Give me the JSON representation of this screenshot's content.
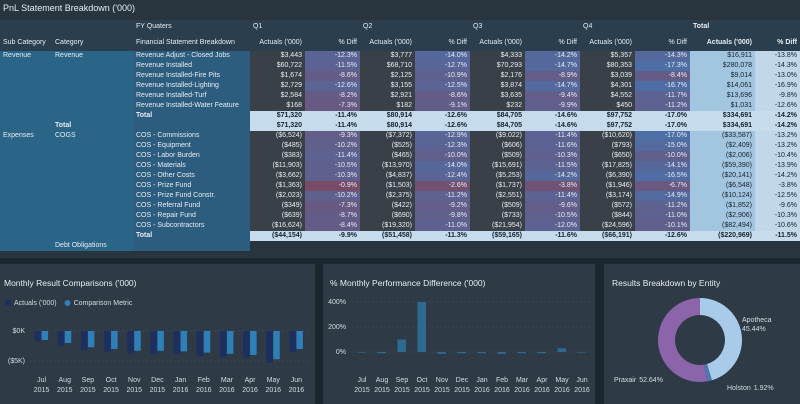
{
  "table": {
    "title": "PnL Statement Breakdown ('000)",
    "group_label": "FY Quaters",
    "quarters": [
      "Q1",
      "Q2",
      "Q3",
      "Q4",
      "Total"
    ],
    "columns": [
      "Sub Category",
      "Category",
      "Financial Statement Breakdown"
    ],
    "measures": [
      "Actuals ('000)",
      "% Diff"
    ],
    "rows": [
      {
        "sub_category": "Revenue",
        "category": "Revenue",
        "item": "Revenue Adjust - Closed Jobs",
        "values": [
          "$3,443",
          "-12.3%",
          "$3,777",
          "-14.0%",
          "$4,333",
          "-14.2%",
          "$5,357",
          "-14.3%",
          "$16,911",
          "-13.8%"
        ]
      },
      {
        "item": "Revenue Installed",
        "values": [
          "$60,722",
          "-11.5%",
          "$68,710",
          "-12.7%",
          "$70,293",
          "-14.7%",
          "$80,353",
          "-17.3%",
          "$280,078",
          "-14.3%"
        ]
      },
      {
        "item": "Revenue Installed-Fire Pits",
        "values": [
          "$1,674",
          "-8.6%",
          "$2,125",
          "-10.9%",
          "$2,176",
          "-8.9%",
          "$3,039",
          "-8.4%",
          "$9,014",
          "-13.0%"
        ]
      },
      {
        "item": "Revenue Installed-Lighting",
        "values": [
          "$2,729",
          "-12.6%",
          "$3,155",
          "-12.5%",
          "$3,874",
          "-14.7%",
          "$4,301",
          "-16.7%",
          "$14,061",
          "-16.9%"
        ]
      },
      {
        "item": "Revenue Installed-Turf",
        "values": [
          "$2,584",
          "-8.2%",
          "$2,921",
          "-8.6%",
          "$3,635",
          "-9.4%",
          "$4,552",
          "-11.7%",
          "$13,696",
          "-9.8%"
        ]
      },
      {
        "item": "Revenue Installed-Water Feature",
        "values": [
          "$168",
          "-7.3%",
          "$182",
          "-9.1%",
          "$232",
          "-9.9%",
          "$450",
          "-11.2%",
          "$1,031",
          "-12.6%"
        ]
      },
      {
        "item": "Total",
        "style": "total",
        "values": [
          "$71,320",
          "-11.4%",
          "$80,914",
          "-12.6%",
          "$84,705",
          "-14.6%",
          "$97,752",
          "-17.0%",
          "$334,691",
          "-14.2%"
        ]
      },
      {
        "category": "Total",
        "style": "total",
        "values": [
          "$71,320",
          "-11.4%",
          "$80,914",
          "-12.6%",
          "$84,705",
          "-14.6%",
          "$97,752",
          "-17.0%",
          "$334,691",
          "-14.2%"
        ]
      },
      {
        "sub_category": "Expenses",
        "category": "COGS",
        "item": "COS - Commissions",
        "values": [
          "($6,524)",
          "-9.3%",
          "($7,372)",
          "-12.9%",
          "($9,022)",
          "-11.4%",
          "($10,620)",
          "-17.0%",
          "($33,587)",
          "-13.2%"
        ]
      },
      {
        "item": "COS - Equipment",
        "values": [
          "($485)",
          "-10.2%",
          "($525)",
          "-12.3%",
          "($606)",
          "-11.6%",
          "($793)",
          "-15.0%",
          "($2,409)",
          "-13.2%"
        ]
      },
      {
        "item": "COS - Labor Burden",
        "values": [
          "($383)",
          "-11.4%",
          "($465)",
          "-10.0%",
          "($509)",
          "-10.3%",
          "($650)",
          "-10.0%",
          "($2,006)",
          "-10.4%"
        ]
      },
      {
        "item": "COS - Materials",
        "values": [
          "($11,903)",
          "-10.5%",
          "($13,970)",
          "-14.0%",
          "($15,691)",
          "-11.5%",
          "($17,825)",
          "-14.1%",
          "($59,390)",
          "-13.9%"
        ]
      },
      {
        "item": "COS - Other Costs",
        "values": [
          "($3,662)",
          "-10.3%",
          "($4,837)",
          "-12.4%",
          "($5,253)",
          "-14.2%",
          "($6,390)",
          "-16.5%",
          "($20,141)",
          "-14.2%"
        ]
      },
      {
        "item": "COS - Prize Fund",
        "values": [
          "($1,363)",
          "-0.9%",
          "($1,503)",
          "-2.6%",
          "($1,737)",
          "-3.8%",
          "($1,946)",
          "-6.7%",
          "($6,548)",
          "-3.8%"
        ]
      },
      {
        "item": "COS - Prize Fund Constr.",
        "values": [
          "($2,023)",
          "-10.2%",
          "($2,375)",
          "-11.2%",
          "($2,551)",
          "-11.4%",
          "($3,174)",
          "-14.9%",
          "($10,124)",
          "-12.5%"
        ]
      },
      {
        "item": "COS - Referral Fund",
        "values": [
          "($349)",
          "-7.3%",
          "($422)",
          "-9.2%",
          "($509)",
          "-9.6%",
          "($572)",
          "-11.2%",
          "($1,852)",
          "-9.6%"
        ]
      },
      {
        "item": "COS - Repair Fund",
        "values": [
          "($639)",
          "-8.7%",
          "($690)",
          "-9.8%",
          "($733)",
          "-10.5%",
          "($844)",
          "-11.0%",
          "($2,906)",
          "-10.3%"
        ]
      },
      {
        "item": "COS - Subcontractors",
        "values": [
          "($16,624)",
          "-8.4%",
          "($19,320)",
          "-11.0%",
          "($21,954)",
          "-12.0%",
          "($24,596)",
          "-10.1%",
          "($82,494)",
          "-10.6%"
        ]
      },
      {
        "item": "Total",
        "style": "total",
        "values": [
          "($44,154)",
          "-9.9%",
          "($51,458)",
          "-11.3%",
          "($59,165)",
          "-11.6%",
          "($66,191)",
          "-12.6%",
          "($220,969)",
          "-11.5%"
        ]
      },
      {
        "category": "Debt Obligations"
      }
    ]
  },
  "chart_data": [
    {
      "type": "bar",
      "title": "Monthly Result Comparisons ('000)",
      "categories": [
        "Jul 2015",
        "Aug 2015",
        "Sep 2015",
        "Oct 2015",
        "Nov 2015",
        "Dec 2015",
        "Jan 2016",
        "Feb 2016",
        "Mar 2016",
        "Apr 2016",
        "May 2016",
        "Jun 2016"
      ],
      "series": [
        {
          "name": "Actuals ('000)",
          "color": "#1d2f5e",
          "values": [
            -1700,
            -2500,
            -3200,
            -3500,
            -3700,
            -3800,
            -3800,
            -4200,
            -4400,
            -4500,
            -5300,
            -3500
          ]
        },
        {
          "name": "Comparison Metric",
          "color": "#2f7fb8",
          "values": [
            -1500,
            -2000,
            -2700,
            -3000,
            -3300,
            -3300,
            -3400,
            -3600,
            -3800,
            -4000,
            -4700,
            -3000
          ]
        }
      ],
      "ylim": [
        -6000,
        1000
      ],
      "yticks": [
        {
          "value": 0,
          "label": "$0K"
        },
        {
          "value": -5000,
          "label": "($5K)"
        }
      ]
    },
    {
      "type": "bar",
      "title": "% Monthly Performance Difference ('000)",
      "categories": [
        "Jul 2015",
        "Aug 2015",
        "Sep 2015",
        "Oct 2015",
        "Nov 2015",
        "Dec 2015",
        "Jan 2016",
        "Feb 2016",
        "Mar 2016",
        "Apr 2016",
        "May 2016",
        "Jun 2016"
      ],
      "values": [
        -5,
        -10,
        100,
        400,
        -15,
        -10,
        -10,
        -15,
        -10,
        -10,
        30,
        -5
      ],
      "color": "#2e6a90",
      "ylim": [
        -40,
        440
      ],
      "yticks": [
        {
          "value": 0,
          "label": "0%"
        },
        {
          "value": 200,
          "label": "200%"
        },
        {
          "value": 400,
          "label": "400%"
        }
      ]
    },
    {
      "type": "pie",
      "title": "Results Breakdown by Entity",
      "categories": [
        "Apotheca",
        "Holston",
        "Praxair"
      ],
      "values": [
        45.44,
        1.92,
        52.64
      ],
      "value_labels": [
        "45.44%",
        "1.92%",
        "52.64%"
      ],
      "colors": [
        "#a9cbea",
        "#4f78b0",
        "#8b64a9"
      ]
    }
  ]
}
